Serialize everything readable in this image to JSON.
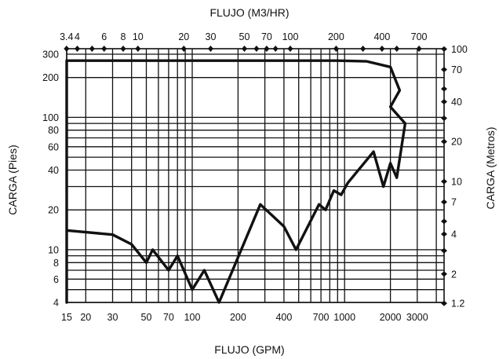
{
  "chart_data": {
    "type": "line",
    "top_axis": {
      "label": "FLUJO (M3/HR)",
      "ticks": [
        {
          "value": 3.4,
          "label": "3.4"
        },
        {
          "value": 4,
          "label": "4"
        },
        {
          "value": 6,
          "label": "6"
        },
        {
          "value": 8,
          "label": "8"
        },
        {
          "value": 10,
          "label": "10"
        },
        {
          "value": 20,
          "label": "20"
        },
        {
          "value": 30,
          "label": "30"
        },
        {
          "value": 50,
          "label": "50"
        },
        {
          "value": 70,
          "label": "70"
        },
        {
          "value": 100,
          "label": "100"
        },
        {
          "value": 200,
          "label": "200"
        },
        {
          "value": 400,
          "label": "400"
        },
        {
          "value": 700,
          "label": "700"
        }
      ]
    },
    "bottom_axis": {
      "label": "FLUJO (GPM)",
      "scale": "log",
      "range": [
        15,
        4500
      ],
      "ticks": [
        {
          "value": 15,
          "label": "15"
        },
        {
          "value": 20,
          "label": "20"
        },
        {
          "value": 30,
          "label": "30"
        },
        {
          "value": 50,
          "label": "50"
        },
        {
          "value": 70,
          "label": "70"
        },
        {
          "value": 100,
          "label": "100"
        },
        {
          "value": 200,
          "label": "200"
        },
        {
          "value": 400,
          "label": "400"
        },
        {
          "value": 700,
          "label": "700"
        },
        {
          "value": 1000,
          "label": "1000"
        },
        {
          "value": 2000,
          "label": "2000"
        },
        {
          "value": 3000,
          "label": "3000"
        }
      ]
    },
    "left_axis": {
      "label": "CARGA (Pies)",
      "scale": "log",
      "range": [
        4,
        330
      ],
      "ticks": [
        {
          "value": 4,
          "label": "4"
        },
        {
          "value": 6,
          "label": "6"
        },
        {
          "value": 8,
          "label": "8"
        },
        {
          "value": 10,
          "label": "10"
        },
        {
          "value": 20,
          "label": "20"
        },
        {
          "value": 40,
          "label": "40"
        },
        {
          "value": 60,
          "label": "60"
        },
        {
          "value": 80,
          "label": "80"
        },
        {
          "value": 100,
          "label": "100"
        },
        {
          "value": 200,
          "label": "200"
        },
        {
          "value": 300,
          "label": "300"
        }
      ]
    },
    "right_axis": {
      "label": "CARGA (Metros)",
      "ticks": [
        {
          "value": 1.2,
          "label": "1.2"
        },
        {
          "value": 2,
          "label": "2"
        },
        {
          "value": 4,
          "label": "4"
        },
        {
          "value": 7,
          "label": "7"
        },
        {
          "value": 10,
          "label": "10"
        },
        {
          "value": 20,
          "label": "20"
        },
        {
          "value": 40,
          "label": "40"
        },
        {
          "value": 70,
          "label": "70"
        },
        {
          "value": 100,
          "label": "100"
        }
      ]
    },
    "grid_x": [
      15,
      20,
      30,
      40,
      50,
      60,
      70,
      80,
      90,
      100,
      200,
      300,
      400,
      500,
      600,
      700,
      800,
      900,
      1000,
      2000,
      3000,
      4000
    ],
    "grid_y": [
      4,
      5,
      6,
      7,
      8,
      9,
      10,
      20,
      30,
      40,
      50,
      60,
      70,
      80,
      90,
      100,
      200,
      300
    ],
    "grid": true,
    "envelope": {
      "x": [
        15,
        15,
        30,
        40,
        50,
        55,
        70,
        80,
        100,
        120,
        150,
        280,
        400,
        480,
        680,
        750,
        850,
        950,
        1050,
        1550,
        1800,
        2000,
        2200,
        2500,
        2000,
        2300,
        2000,
        1400,
        900,
        100,
        15,
        15
      ],
      "y": [
        4,
        14,
        13,
        11,
        8,
        10,
        7,
        9,
        5,
        7,
        4,
        22,
        15,
        10,
        22,
        20,
        28,
        26,
        32,
        55,
        30,
        45,
        35,
        90,
        120,
        160,
        240,
        265,
        268,
        268,
        268,
        14
      ]
    }
  }
}
